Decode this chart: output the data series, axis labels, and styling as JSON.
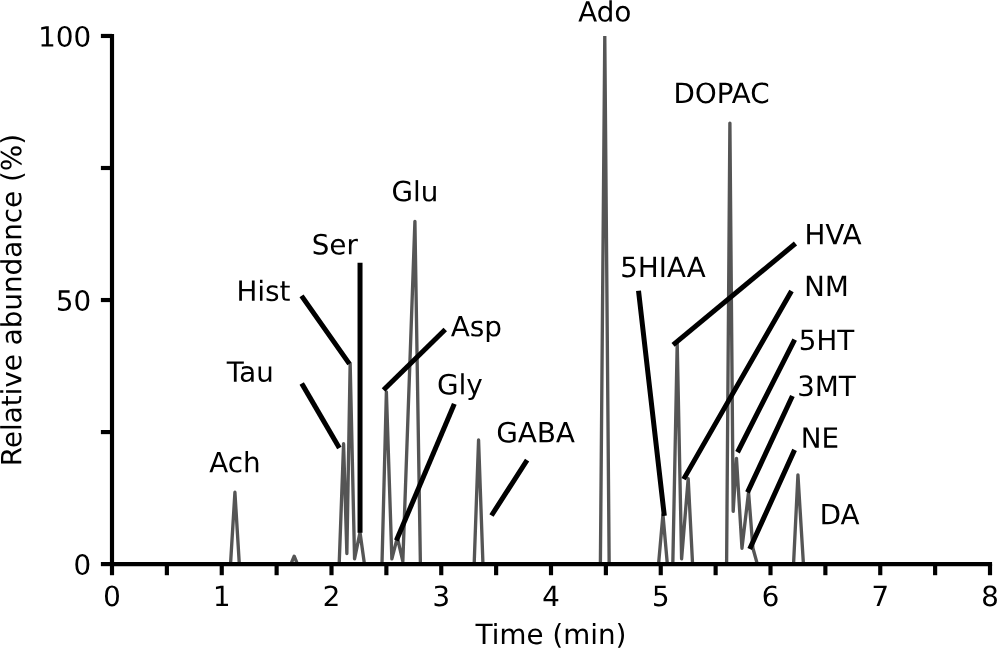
{
  "chart_data": {
    "type": "line",
    "xlabel": "Time (min)",
    "ylabel": "Relative abundance (%)",
    "xlim": [
      0,
      8
    ],
    "ylim": [
      0,
      100
    ],
    "xticks": [
      0,
      {
        "value": 0.5,
        "label": null
      },
      1,
      {
        "value": 1.5,
        "label": null
      },
      2,
      {
        "value": 2.5,
        "label": null
      },
      3,
      {
        "value": 3.5,
        "label": null
      },
      4,
      {
        "value": 4.5,
        "label": null
      },
      5,
      {
        "value": 5.5,
        "label": null
      },
      6,
      {
        "value": 6.5,
        "label": null
      },
      7,
      {
        "value": 7.5,
        "label": null
      },
      8
    ],
    "yticks": [
      0,
      {
        "value": 25,
        "label": null
      },
      50,
      {
        "value": 75,
        "label": null
      },
      100
    ],
    "grid": false,
    "marker": "none",
    "line_style": "solid",
    "series": [
      {
        "color": "#555555",
        "x": [
          0,
          1.08,
          1.12,
          1.16,
          1.63,
          1.66,
          1.69,
          2.07,
          2.11,
          2.14,
          2.17,
          2.21,
          2.26,
          2.3,
          2.46,
          2.5,
          2.55,
          2.6,
          2.65,
          2.76,
          2.81,
          3.3,
          3.34,
          3.38,
          4.45,
          4.49,
          4.53,
          4.98,
          5.02,
          5.06,
          5.11,
          5.15,
          5.19,
          5.25,
          5.29,
          5.6,
          5.63,
          5.66,
          5.69,
          5.74,
          5.8,
          5.84,
          5.88,
          6.21,
          6.25,
          6.3,
          8
        ],
        "values": [
          0,
          0,
          13.6,
          0,
          0,
          1.5,
          0,
          0,
          22.8,
          2,
          38,
          1,
          6,
          0,
          0,
          32.6,
          1,
          5,
          0.5,
          64.9,
          0,
          0,
          23.5,
          0,
          0,
          100,
          0,
          0,
          9.4,
          0,
          0,
          41.8,
          1,
          16.2,
          0,
          0,
          83.5,
          10,
          20,
          3,
          13.6,
          3,
          0,
          0,
          16.9,
          0,
          0
        ]
      }
    ],
    "annotations": [
      {
        "text": "Ach",
        "x": 1.12,
        "y": 13.6
      },
      {
        "text": "Tau",
        "x": 2.06,
        "y": 22.4
      },
      {
        "text": "Hist",
        "x": 2.15,
        "y": 38.3
      },
      {
        "text": "Ser",
        "x": 2.26,
        "y": 6.4
      },
      {
        "text": "Asp",
        "x": 2.49,
        "y": 33.3
      },
      {
        "text": "Gly",
        "x": 2.6,
        "y": 4.9
      },
      {
        "text": "Glu",
        "x": 2.76,
        "y": 64.9
      },
      {
        "text": "GABA",
        "x": 3.47,
        "y": 9.6
      },
      {
        "text": "Ado",
        "x": 4.49,
        "y": 100
      },
      {
        "text": "5HIAA",
        "x": 5.03,
        "y": 9.6
      },
      {
        "text": "HVA",
        "x": 5.13,
        "y": 41.8
      },
      {
        "text": "NM",
        "x": 5.22,
        "y": 16.5
      },
      {
        "text": "DOPAC",
        "x": 5.63,
        "y": 83.5
      },
      {
        "text": "5HT",
        "x": 5.71,
        "y": 21.6
      },
      {
        "text": "3MT",
        "x": 5.8,
        "y": 14.0
      },
      {
        "text": "NE",
        "x": 5.82,
        "y": 3.3
      },
      {
        "text": "DA",
        "x": 6.25,
        "y": 16.9
      }
    ]
  }
}
